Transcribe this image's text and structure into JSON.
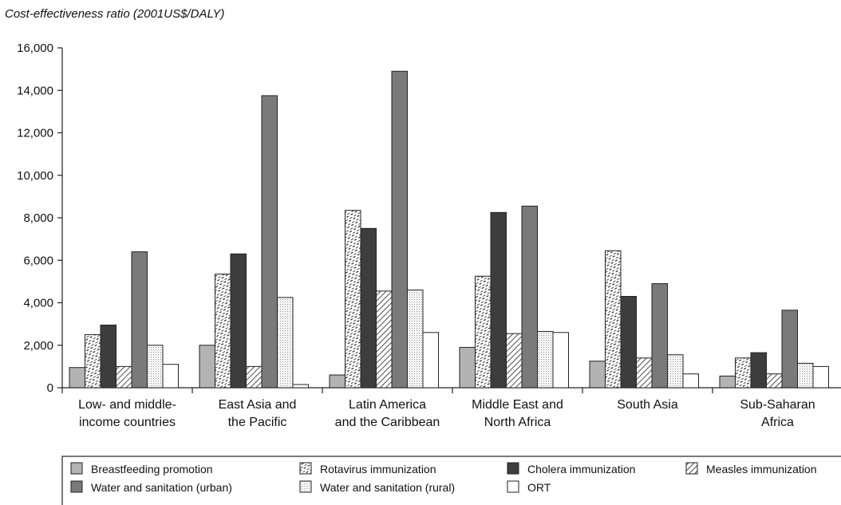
{
  "chart_data": {
    "type": "bar",
    "ylabel": "Cost-effectiveness ratio (2001US$/DALY)",
    "ylim": [
      0,
      16000
    ],
    "yticks": [
      0,
      2000,
      4000,
      6000,
      8000,
      10000,
      12000,
      14000,
      16000
    ],
    "ytick_labels": [
      "0",
      "2,000",
      "4,000",
      "6,000",
      "8,000",
      "10,000",
      "12,000",
      "14,000",
      "16,000"
    ],
    "grid": false,
    "legend_position": "bottom",
    "categories": [
      [
        "Low- and middle-",
        "income countries"
      ],
      [
        "East Asia and",
        "the Pacific"
      ],
      [
        "Latin America",
        "and the Caribbean"
      ],
      [
        "Middle East and",
        "North Africa"
      ],
      [
        "South Asia"
      ],
      [
        "Sub-Saharan",
        "Africa"
      ]
    ],
    "series": [
      {
        "name": "Breastfeeding promotion",
        "values": [
          950,
          2000,
          600,
          1900,
          1250,
          550
        ],
        "color": "#b3b3b3",
        "pattern": "solid"
      },
      {
        "name": "Rotavirus immunization",
        "values": [
          2500,
          5350,
          8350,
          5250,
          6450,
          1400
        ],
        "color": "#ffffff",
        "pattern": "dashes"
      },
      {
        "name": "Cholera immunization",
        "values": [
          2950,
          6300,
          7500,
          8250,
          4300,
          1650
        ],
        "color": "#3d3d3d",
        "pattern": "solid"
      },
      {
        "name": "Measles immunization",
        "values": [
          1000,
          1000,
          4550,
          2550,
          1400,
          650
        ],
        "color": "#ffffff",
        "pattern": "diagonal"
      },
      {
        "name": "Water and sanitation (urban)",
        "values": [
          6400,
          13750,
          14900,
          8550,
          4900,
          3650
        ],
        "color": "#7a7a7a",
        "pattern": "solid"
      },
      {
        "name": "Water and sanitation (rural)",
        "values": [
          2000,
          4250,
          4600,
          2650,
          1550,
          1150
        ],
        "color": "#ffffff",
        "pattern": "dots"
      },
      {
        "name": "ORT",
        "values": [
          1100,
          150,
          2600,
          2600,
          650,
          1000
        ],
        "color": "#ffffff",
        "pattern": "none"
      }
    ]
  }
}
